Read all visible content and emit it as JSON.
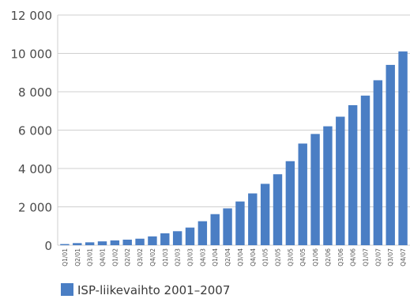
{
  "chart_data": {
    "type": "bar",
    "categories": [
      "Q1/01",
      "Q2/01",
      "Q3/01",
      "Q4/01",
      "Q1/02",
      "Q2/02",
      "Q3/02",
      "Q4/02",
      "Q1/03",
      "Q2/03",
      "Q3/03",
      "Q4/03",
      "Q1/04",
      "Q2/04",
      "Q3/04",
      "Q4/04",
      "Q1/05",
      "Q2/05",
      "Q3/05",
      "Q4/05",
      "Q1/06",
      "Q2/06",
      "Q3/06",
      "Q4/06",
      "Q1/07",
      "Q2/07",
      "Q3/07",
      "Q4/07"
    ],
    "series": [
      {
        "name": "ISP-liikevaihto 2001–2007",
        "color": "#4a7ec4",
        "values": [
          60,
          110,
          150,
          200,
          250,
          290,
          340,
          460,
          620,
          730,
          920,
          1250,
          1620,
          1920,
          2280,
          2700,
          3200,
          3700,
          4380,
          5300,
          5800,
          6200,
          6700,
          7300,
          7800,
          8600,
          9400,
          10100
        ]
      }
    ],
    "ylim": [
      0,
      12000
    ],
    "yticks": [
      0,
      2000,
      4000,
      6000,
      8000,
      10000,
      12000
    ],
    "ytick_labels": [
      "0",
      "2 000",
      "4 000",
      "6 000",
      "8 000",
      "10 000",
      "12 000"
    ],
    "grid": "horizontal",
    "legend": "bottom-left",
    "title": "",
    "xlabel": "",
    "ylabel": ""
  }
}
